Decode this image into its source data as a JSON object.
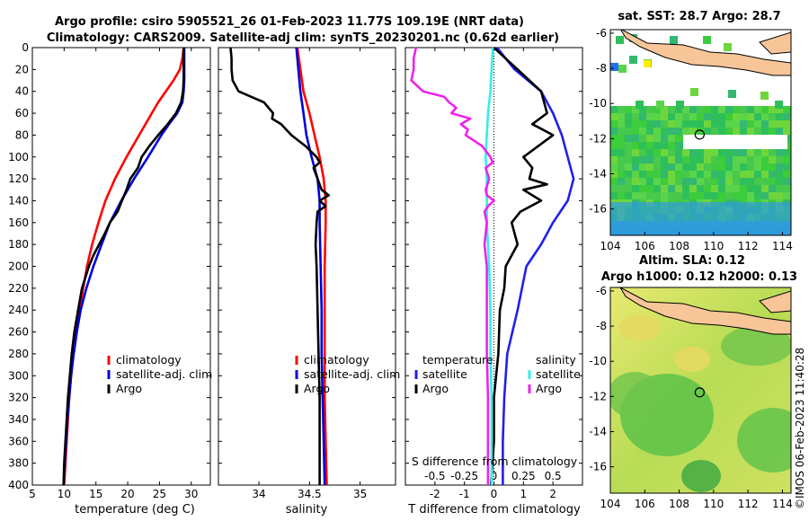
{
  "header": {
    "title_line1": "Argo profile: csiro 5905521_26 01-Feb-2023 11.77S 109.19E (NRT data)",
    "title_line2": "Climatology: CARS2009. Satellite-adj clim: synTS_20230201.nc (0.62d earlier)"
  },
  "side_stamp": "©IMOS 06-Feb-2023 11:40:28",
  "colors": {
    "climatology": "#ff0000",
    "satellite": "#0000dd",
    "argo": "#000000",
    "temp_diff_sat": "#2020ee",
    "sal_diff_sat": "#33eeee",
    "sal_diff_argo": "#ee22ee",
    "land": "#f7c598"
  },
  "chart_data": [
    {
      "id": "temperature",
      "type": "line",
      "xlabel": "temperature (deg C)",
      "ylabel": "",
      "xlim": [
        5,
        33
      ],
      "ylim": [
        0,
        400
      ],
      "y_inverted": true,
      "xticks": [
        5,
        10,
        15,
        20,
        25,
        30
      ],
      "yticks": [
        0,
        20,
        40,
        60,
        80,
        100,
        120,
        140,
        160,
        180,
        200,
        220,
        240,
        260,
        280,
        300,
        320,
        340,
        360,
        380,
        400
      ],
      "legend": [
        "climatology",
        "satellite-adj. clim",
        "Argo"
      ],
      "series": [
        {
          "name": "climatology",
          "color_key": "climatology",
          "depth": [
            0,
            10,
            20,
            30,
            40,
            50,
            60,
            70,
            80,
            100,
            120,
            140,
            160,
            180,
            200,
            220,
            240,
            260,
            280,
            300,
            320,
            340,
            360,
            380,
            400
          ],
          "values": [
            28.8,
            28.6,
            28.2,
            27.2,
            26.0,
            24.8,
            23.8,
            22.8,
            21.8,
            19.8,
            18.0,
            16.5,
            15.4,
            14.4,
            13.6,
            13.0,
            12.4,
            11.8,
            11.4,
            11.1,
            10.8,
            10.6,
            10.4,
            10.2,
            10.0
          ]
        },
        {
          "name": "satellite-adj. clim",
          "color_key": "satellite",
          "depth": [
            0,
            10,
            20,
            30,
            40,
            50,
            60,
            70,
            80,
            100,
            120,
            140,
            160,
            180,
            200,
            220,
            240,
            260,
            280,
            300,
            320,
            340,
            360,
            380,
            400
          ],
          "values": [
            28.9,
            28.9,
            28.9,
            28.9,
            28.8,
            28.6,
            27.8,
            26.5,
            25.3,
            23.2,
            21.0,
            19.0,
            17.2,
            15.9,
            14.6,
            13.5,
            12.6,
            12.0,
            11.5,
            11.1,
            10.8,
            10.5,
            10.3,
            10.1,
            9.9
          ]
        },
        {
          "name": "Argo",
          "color_key": "argo",
          "depth": [
            0,
            10,
            20,
            30,
            40,
            50,
            60,
            70,
            80,
            90,
            100,
            110,
            120,
            130,
            140,
            150,
            160,
            170,
            180,
            190,
            200,
            220,
            240,
            260,
            280,
            300,
            320,
            340,
            360,
            380,
            400
          ],
          "values": [
            28.8,
            28.8,
            28.8,
            28.8,
            28.7,
            28.4,
            27.6,
            26.3,
            24.8,
            23.4,
            22.2,
            21.6,
            20.4,
            19.8,
            19.1,
            18.4,
            17.2,
            16.4,
            15.5,
            14.6,
            13.9,
            12.8,
            12.2,
            11.6,
            11.2,
            10.9,
            10.6,
            10.4,
            10.2,
            10.0,
            9.9
          ]
        }
      ]
    },
    {
      "id": "salinity",
      "type": "line",
      "xlabel": "salinity",
      "xlim": [
        33.6,
        35.35
      ],
      "ylim": [
        0,
        400
      ],
      "y_inverted": true,
      "xticks": [
        34,
        34.5,
        35
      ],
      "legend": [
        "climatology",
        "satellite-adj. clim",
        "Argo"
      ],
      "series": [
        {
          "name": "climatology",
          "color_key": "climatology",
          "depth": [
            0,
            20,
            40,
            60,
            80,
            100,
            120,
            140,
            160,
            200,
            240,
            280,
            320,
            360,
            400
          ],
          "values": [
            34.38,
            34.41,
            34.44,
            34.5,
            34.55,
            34.6,
            34.64,
            34.66,
            34.66,
            34.65,
            34.65,
            34.65,
            34.65,
            34.66,
            34.67
          ]
        },
        {
          "name": "satellite-adj. clim",
          "color_key": "satellite",
          "depth": [
            0,
            20,
            40,
            60,
            80,
            100,
            120,
            140,
            160,
            200,
            240,
            280,
            320,
            360,
            400
          ],
          "values": [
            34.37,
            34.39,
            34.41,
            34.44,
            34.47,
            34.52,
            34.58,
            34.6,
            34.6,
            34.61,
            34.62,
            34.62,
            34.63,
            34.64,
            34.65
          ]
        },
        {
          "name": "Argo",
          "color_key": "argo",
          "depth": [
            0,
            10,
            20,
            30,
            40,
            50,
            60,
            65,
            70,
            80,
            90,
            100,
            105,
            110,
            120,
            130,
            135,
            140,
            145,
            150,
            160,
            180,
            200,
            240,
            280,
            320,
            360,
            400
          ],
          "values": [
            33.72,
            33.73,
            33.73,
            33.74,
            33.8,
            34.05,
            34.14,
            34.13,
            34.22,
            34.32,
            34.46,
            34.57,
            34.6,
            34.54,
            34.58,
            34.62,
            34.69,
            34.6,
            34.66,
            34.58,
            34.57,
            34.56,
            34.57,
            34.58,
            34.59,
            34.6,
            34.6,
            34.6
          ]
        }
      ]
    },
    {
      "id": "difference",
      "type": "line",
      "xlabel": "T difference from climatology",
      "top_axis_label": "S difference from climatology",
      "xlim": [
        -3,
        3
      ],
      "ylim": [
        0,
        400
      ],
      "y_inverted": true,
      "xticks": [
        -2,
        -1,
        0,
        1,
        2
      ],
      "salinity_xlim": [
        -0.75,
        0.75
      ],
      "salinity_xticks": [
        -0.5,
        -0.25,
        0,
        0.25,
        0.5
      ],
      "salinity_xtick_labels": [
        "-0.5",
        "-0.25",
        "0",
        "0.25",
        "0.5"
      ],
      "legend_temperature_heading": "temperature",
      "legend_salinity_heading": "salinity",
      "legend_temperature": [
        "satellite",
        "Argo"
      ],
      "legend_salinity": [
        "satellite",
        "Argo"
      ],
      "series": [
        {
          "name": "temperature satellite",
          "color_key": "satellite",
          "axis": "T",
          "depth": [
            0,
            20,
            40,
            60,
            80,
            100,
            120,
            140,
            160,
            180,
            200,
            240,
            280,
            320,
            360,
            400
          ],
          "values": [
            0.1,
            0.7,
            1.6,
            2.0,
            2.3,
            2.5,
            2.7,
            2.5,
            2.0,
            1.6,
            1.1,
            0.8,
            0.45,
            0.35,
            0.3,
            0.3
          ]
        },
        {
          "name": "temperature Argo",
          "color_key": "argo",
          "axis": "T",
          "depth": [
            0,
            10,
            20,
            40,
            60,
            70,
            80,
            100,
            110,
            120,
            125,
            130,
            140,
            150,
            160,
            180,
            200,
            220,
            240,
            280,
            320,
            360,
            400
          ],
          "values": [
            0.0,
            0.4,
            0.8,
            1.6,
            1.8,
            1.3,
            2.0,
            1.0,
            1.3,
            1.2,
            1.8,
            1.0,
            1.6,
            0.9,
            0.6,
            0.8,
            0.4,
            0.35,
            0.2,
            0.15,
            0.0,
            0.0,
            -0.1
          ]
        },
        {
          "name": "salinity satellite",
          "color_key": "sal_diff_sat",
          "axis": "S",
          "depth": [
            0,
            20,
            40,
            60,
            80,
            100,
            120,
            140,
            160,
            200,
            240,
            280,
            320,
            360,
            400
          ],
          "values": [
            -0.01,
            -0.02,
            -0.03,
            -0.05,
            -0.06,
            -0.07,
            -0.06,
            -0.06,
            -0.06,
            -0.04,
            -0.03,
            -0.03,
            -0.02,
            -0.02,
            -0.02
          ]
        },
        {
          "name": "salinity Argo",
          "color_key": "sal_diff_argo",
          "axis": "S",
          "depth": [
            0,
            10,
            20,
            30,
            40,
            45,
            50,
            55,
            60,
            65,
            70,
            75,
            80,
            90,
            100,
            105,
            110,
            120,
            130,
            135,
            140,
            145,
            150,
            160,
            180,
            200,
            240,
            280,
            320,
            360,
            400
          ],
          "values": [
            -0.66,
            -0.68,
            -0.68,
            -0.7,
            -0.6,
            -0.42,
            -0.38,
            -0.32,
            -0.36,
            -0.2,
            -0.28,
            -0.22,
            -0.24,
            -0.1,
            -0.03,
            -0.01,
            -0.07,
            -0.04,
            -0.07,
            -0.06,
            0.0,
            -0.05,
            -0.08,
            -0.06,
            -0.08,
            -0.06,
            -0.06,
            -0.06,
            -0.05,
            -0.05,
            -0.05
          ]
        }
      ]
    },
    {
      "id": "sst_map",
      "type": "heatmap",
      "title": "sat. SST: 28.7 Argo: 28.7",
      "xlim": [
        104,
        114.5
      ],
      "ylim": [
        -17.5,
        -5.8
      ],
      "xticks": [
        104,
        106,
        108,
        110,
        112,
        114
      ],
      "yticks": [
        -6,
        -8,
        -10,
        -12,
        -14,
        -16
      ],
      "argo_location": [
        109.19,
        -11.77
      ]
    },
    {
      "id": "sla_map",
      "type": "heatmap",
      "title_line1": "Altim. SLA: 0.12",
      "title_line2": "Argo h1000: 0.12 h2000: 0.13",
      "xlim": [
        104,
        114.5
      ],
      "ylim": [
        -17.5,
        -5.8
      ],
      "xticks": [
        104,
        106,
        108,
        110,
        112,
        114
      ],
      "yticks": [
        -6,
        -8,
        -10,
        -12,
        -14,
        -16
      ],
      "argo_location": [
        109.19,
        -11.77
      ]
    }
  ]
}
